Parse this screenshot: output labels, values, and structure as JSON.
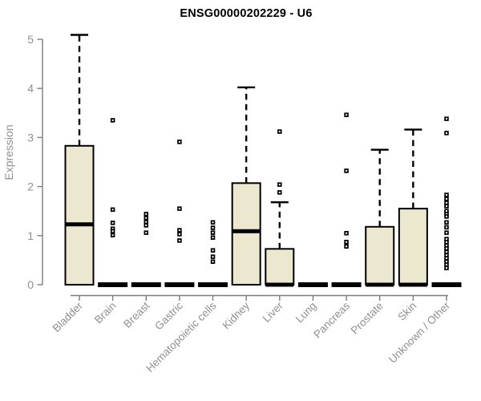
{
  "chart_data": {
    "type": "boxplot",
    "title": "ENSG00000202229 - U6",
    "ylabel": "Expression",
    "xlabel": "",
    "ylim": [
      0,
      5
    ],
    "yticks": [
      0,
      1,
      2,
      3,
      4,
      5
    ],
    "grid": false,
    "legend": false,
    "categories": [
      "Bladder",
      "Brain",
      "Breast",
      "Gastric",
      "Hematopoietic cells",
      "Kidney",
      "Liver",
      "Lung",
      "Pancreas",
      "Prostate",
      "Skin",
      "Unknown / Other"
    ],
    "series": [
      {
        "name": "Bladder",
        "q1": 0,
        "median": 1.23,
        "q3": 2.83,
        "whisker_low": 0,
        "whisker_high": 5.09,
        "outliers": []
      },
      {
        "name": "Brain",
        "q1": 0,
        "median": 0,
        "q3": 0,
        "whisker_low": 0,
        "whisker_high": 0,
        "outliers": [
          3.35,
          1.53,
          1.26,
          1.14,
          1.09,
          1.01
        ]
      },
      {
        "name": "Breast",
        "q1": 0,
        "median": 0,
        "q3": 0,
        "whisker_low": 0,
        "whisker_high": 0,
        "outliers": [
          1.44,
          1.36,
          1.28,
          1.21,
          1.06
        ]
      },
      {
        "name": "Gastric",
        "q1": 0,
        "median": 0,
        "q3": 0,
        "whisker_low": 0,
        "whisker_high": 0,
        "outliers": [
          2.91,
          1.55,
          1.11,
          1.03,
          0.9
        ]
      },
      {
        "name": "Hematopoietic cells",
        "q1": 0,
        "median": 0,
        "q3": 0,
        "whisker_low": 0,
        "whisker_high": 0,
        "outliers": [
          1.27,
          1.16,
          1.06,
          0.96,
          0.7,
          0.57,
          0.47
        ]
      },
      {
        "name": "Kidney",
        "q1": 0,
        "median": 1.09,
        "q3": 2.07,
        "whisker_low": 0,
        "whisker_high": 4.02,
        "outliers": []
      },
      {
        "name": "Liver",
        "q1": 0,
        "median": 0,
        "q3": 0.73,
        "whisker_low": 0,
        "whisker_high": 1.68,
        "outliers": [
          3.12,
          2.04,
          1.88
        ]
      },
      {
        "name": "Lung",
        "q1": 0,
        "median": 0,
        "q3": 0,
        "whisker_low": 0,
        "whisker_high": 0,
        "outliers": []
      },
      {
        "name": "Pancreas",
        "q1": 0,
        "median": 0,
        "q3": 0,
        "whisker_low": 0,
        "whisker_high": 0,
        "outliers": [
          3.46,
          2.32,
          1.05,
          0.87,
          0.78
        ]
      },
      {
        "name": "Prostate",
        "q1": 0,
        "median": 0,
        "q3": 1.18,
        "whisker_low": 0,
        "whisker_high": 2.75,
        "outliers": []
      },
      {
        "name": "Skin",
        "q1": 0,
        "median": 0,
        "q3": 1.55,
        "whisker_low": 0,
        "whisker_high": 3.16,
        "outliers": []
      },
      {
        "name": "Unknown / Other",
        "q1": 0,
        "median": 0,
        "q3": 0,
        "whisker_low": 0,
        "whisker_high": 0,
        "outliers": [
          3.38,
          3.09,
          1.83,
          1.75,
          1.67,
          1.6,
          1.5,
          1.44,
          1.39,
          1.27,
          1.17,
          1.06,
          0.93,
          0.87,
          0.8,
          0.74,
          0.67,
          0.6,
          0.54,
          0.47,
          0.41,
          0.34
        ]
      }
    ],
    "colors": {
      "box_fill": "#ece8cf",
      "box_stroke": "#000000",
      "median": "#000000",
      "whisker": "#000000",
      "outlier": "#000000",
      "axis_line": "#7d7d7d",
      "tick_label": "#909090",
      "title": "#000000"
    }
  }
}
